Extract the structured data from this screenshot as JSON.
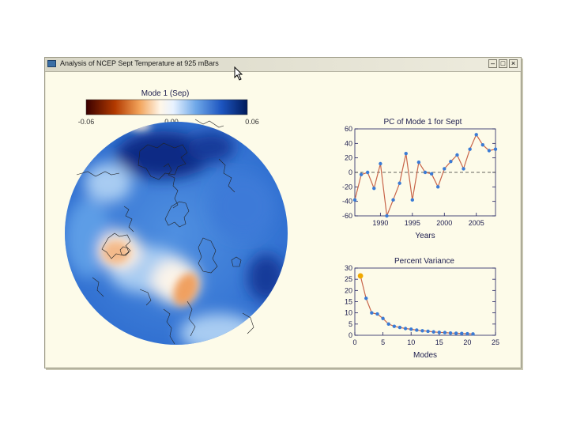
{
  "window": {
    "title": "Analysis of NCEP Sept Temperature at 925 mBars"
  },
  "map": {
    "title": "Mode 1 (Sep)",
    "colorbar_labels": [
      "-0.06",
      "0.00",
      "0.06"
    ]
  },
  "chart_data": [
    {
      "type": "line",
      "title": "PC of Mode 1 for Sept",
      "xlabel": "Years",
      "ylabel": "",
      "xlim": [
        1986,
        2008
      ],
      "ylim": [
        -60,
        60
      ],
      "xticks": [
        1990,
        1995,
        2000,
        2005
      ],
      "yticks": [
        60,
        40,
        20,
        0,
        -20,
        -40,
        -60
      ],
      "zero_line": "dashed",
      "series": [
        {
          "color": "#c8654a",
          "marker_color": "#3a7bd5",
          "x": [
            1986,
            1987,
            1988,
            1989,
            1990,
            1991,
            1992,
            1993,
            1994,
            1995,
            1996,
            1997,
            1998,
            1999,
            2000,
            2001,
            2002,
            2003,
            2004,
            2005,
            2006,
            2007,
            2008
          ],
          "y": [
            -38,
            -3,
            0,
            -22,
            12,
            -60,
            -38,
            -15,
            26,
            -38,
            14,
            0,
            -2,
            -20,
            5,
            15,
            24,
            5,
            32,
            52,
            38,
            30,
            32
          ]
        }
      ]
    },
    {
      "type": "line",
      "title": "Percent Variance",
      "xlabel": "Modes",
      "ylabel": "",
      "xlim": [
        0,
        25
      ],
      "ylim": [
        0,
        30
      ],
      "xticks": [
        0,
        5,
        10,
        15,
        20,
        25
      ],
      "yticks": [
        30,
        25,
        20,
        15,
        10,
        5,
        0
      ],
      "series": [
        {
          "color": "#c8654a",
          "marker_color": "#3a7bd5",
          "highlight_color": "#f0a800",
          "x": [
            1,
            2,
            3,
            4,
            5,
            6,
            7,
            8,
            9,
            10,
            11,
            12,
            13,
            14,
            15,
            16,
            17,
            18,
            19,
            20,
            21
          ],
          "y": [
            26.5,
            16.5,
            10,
            9.5,
            7.5,
            5,
            4,
            3.5,
            3,
            2.7,
            2.3,
            2,
            1.8,
            1.5,
            1.3,
            1.2,
            1,
            0.9,
            0.8,
            0.7,
            0.6
          ]
        }
      ]
    }
  ]
}
